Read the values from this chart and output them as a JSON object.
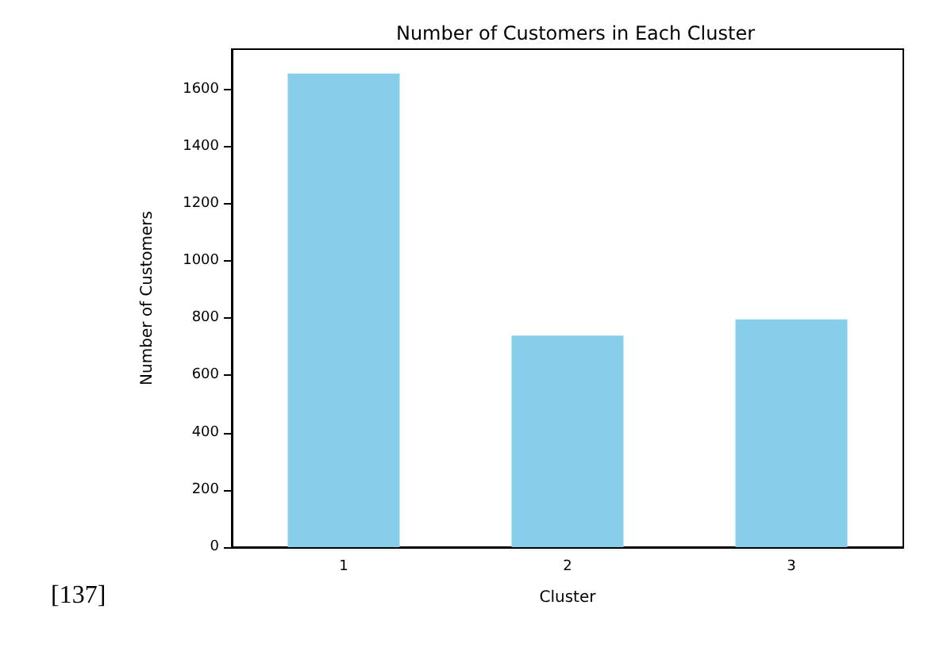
{
  "chart_data": {
    "type": "bar",
    "title": "Number of Customers in Each Cluster",
    "xlabel": "Cluster",
    "ylabel": "Number of Customers",
    "categories": [
      "1",
      "2",
      "3"
    ],
    "values": [
      1655,
      739,
      796
    ],
    "color": "#87ceeb",
    "ylim": [
      0,
      1740
    ],
    "yticks": [
      0,
      200,
      400,
      600,
      800,
      1000,
      1200,
      1400,
      1600
    ],
    "grid": false,
    "annotations": [
      "[137]"
    ]
  }
}
